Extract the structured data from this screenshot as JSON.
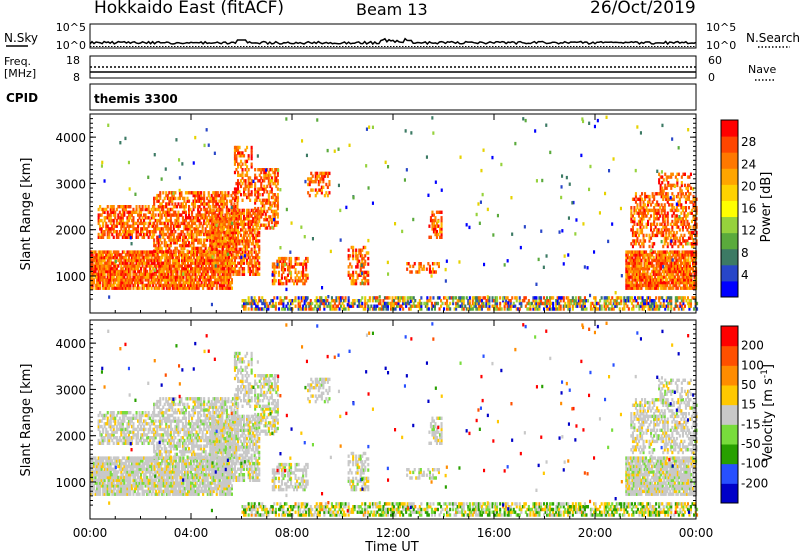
{
  "header": {
    "station": "Hokkaido East (fitACF)",
    "beam": "Beam 13",
    "date": "26/Oct/2019"
  },
  "panels": {
    "nsky_label": "N.Sky",
    "nsky_ticks": [
      "10^5",
      "10^0"
    ],
    "nsearch_label": "N.Search",
    "nsearch_ticks": [
      "10^5",
      "10^0"
    ],
    "freq_label": "Freq.",
    "freq_unit": "[MHz]",
    "freq_ticks": [
      "18",
      "8"
    ],
    "nave_label": "Nave",
    "nave_ticks": [
      "60",
      "0"
    ],
    "cpid_label": "CPID",
    "cpid_value": "themis 3300"
  },
  "chart_data": [
    {
      "type": "heatmap",
      "quantity": "Power",
      "ylabel": "Slant Range [km]",
      "ylim": [
        200,
        4500
      ],
      "yticks": [
        1000,
        2000,
        3000,
        4000
      ],
      "colorbar_label": "Power [dB]",
      "colorbar_ticks": [
        "28",
        "24",
        "20",
        "16",
        "12",
        "8",
        "4"
      ],
      "colorbar_colors": [
        "#0000ff",
        "#2846c8",
        "#3c7a64",
        "#5aaa3c",
        "#96d23c",
        "#ffff00",
        "#ffd200",
        "#ffa500",
        "#ff7800",
        "#ff4600",
        "#ff0000"
      ]
    },
    {
      "type": "heatmap",
      "quantity": "Velocity",
      "ylabel": "Slant Range [km]",
      "ylim": [
        200,
        4500
      ],
      "yticks": [
        1000,
        2000,
        3000,
        4000
      ],
      "colorbar_label": "Velocity [m s",
      "colorbar_label_sup": "-1",
      "colorbar_label_end": "]",
      "colorbar_ticks": [
        "200",
        "100",
        "50",
        "15",
        "-15",
        "-50",
        "-100",
        "-200"
      ],
      "colorbar_colors": [
        "#0000c8",
        "#2850ff",
        "#28a000",
        "#78dc3c",
        "#c8c8c8",
        "#ffc800",
        "#ff8c00",
        "#ff5000",
        "#ff0000"
      ]
    }
  ],
  "xaxis": {
    "label": "Time UT",
    "ticks": [
      "00:00",
      "04:00",
      "08:00",
      "12:00",
      "16:00",
      "20:00",
      "00:00"
    ]
  }
}
